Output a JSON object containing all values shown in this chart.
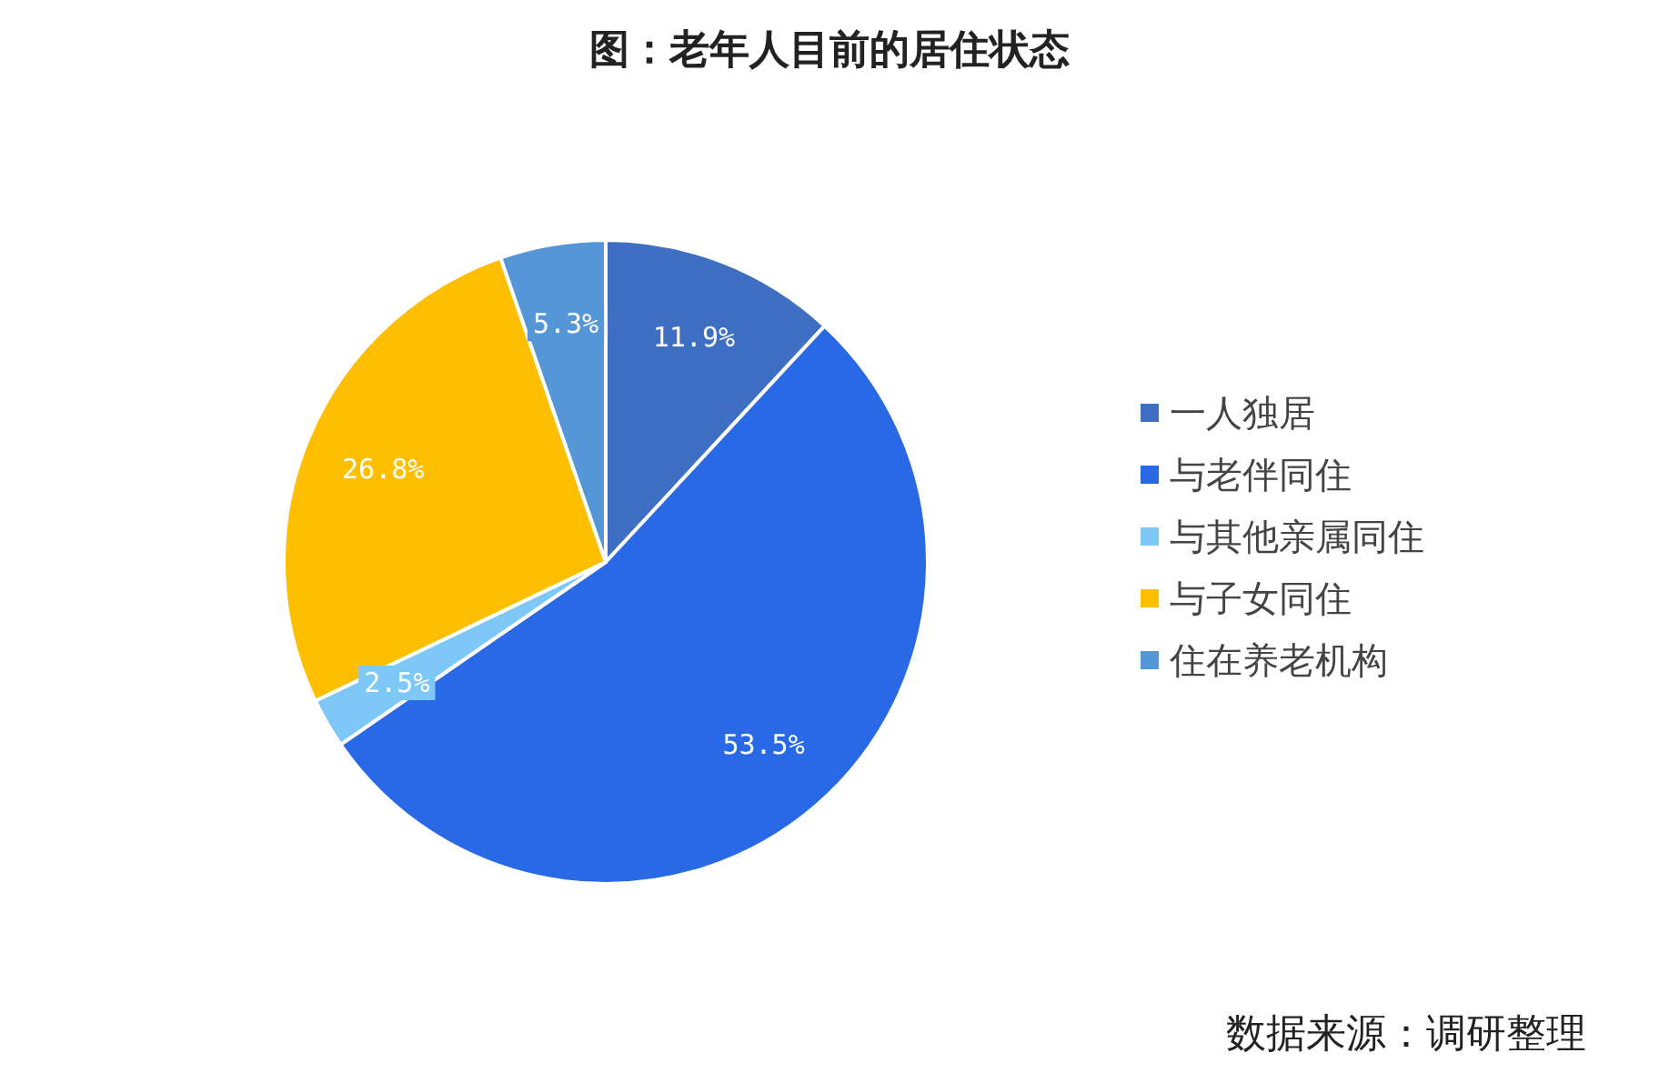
{
  "chart_data": {
    "type": "pie",
    "title": "图：老年人目前的居住状态",
    "categories": [
      "一人独居",
      "与老伴同住",
      "与其他亲属同住",
      "与子女同住",
      "住在养老机构"
    ],
    "values": [
      11.9,
      53.5,
      2.5,
      26.8,
      5.3
    ],
    "value_labels": [
      "11.9%",
      "53.5%",
      "2.5%",
      "26.8%",
      "5.3%"
    ],
    "colors": [
      "#3f6fc2",
      "#2a69e6",
      "#7ec8f7",
      "#ffbf00",
      "#5596d6"
    ],
    "legend": "right",
    "annotations": [
      "数据来源：调研整理"
    ]
  }
}
